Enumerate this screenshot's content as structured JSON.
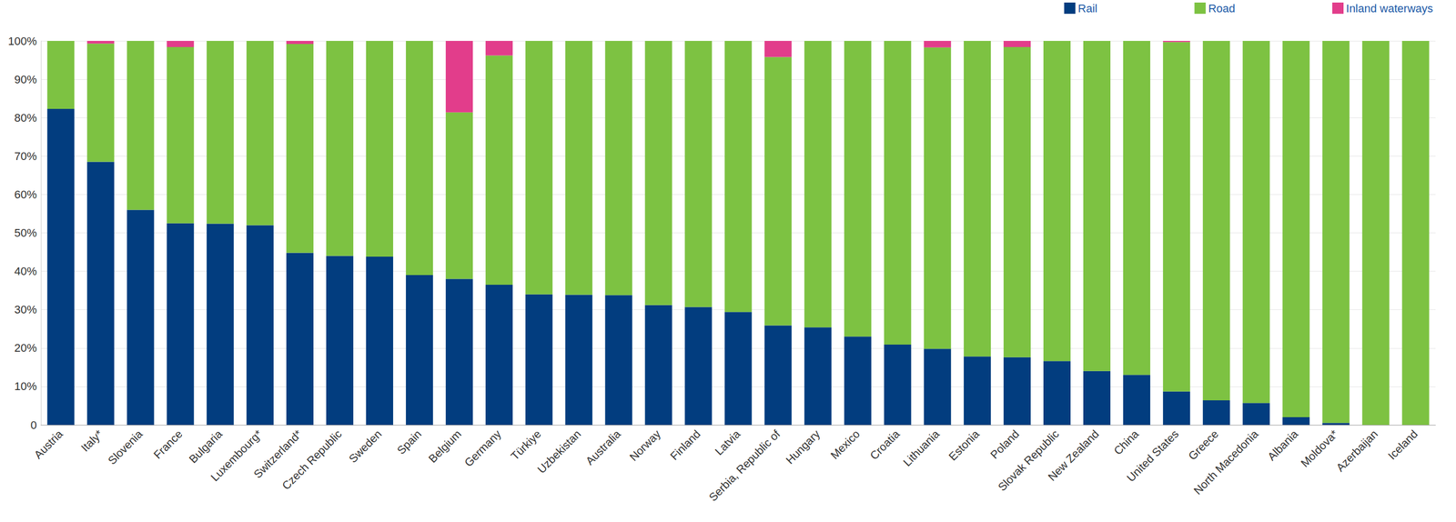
{
  "chart_data": {
    "type": "bar",
    "stacked": true,
    "legend": "top-right",
    "grid": true,
    "categories": [
      "Austria",
      "Italy*",
      "Slovenia",
      "France",
      "Bulgaria",
      "Luxembourg*",
      "Switzerland*",
      "Czech Republic",
      "Sweden",
      "Spain",
      "Belgium",
      "Germany",
      "Türkiye",
      "Uzbekistan",
      "Australia",
      "Norway",
      "Finland",
      "Latvia",
      "Serbia, Republic of",
      "Hungary",
      "Mexico",
      "Croatia",
      "Lithuania",
      "Estonia",
      "Poland",
      "Slovak Republic",
      "New Zealand",
      "China",
      "United States",
      "Greece",
      "North Macedonia",
      "Albania",
      "Moldova*",
      "Azerbaijan",
      "Iceland"
    ],
    "series": [
      {
        "name": "Rail",
        "color": "#023d7f",
        "values": [
          82.3,
          68.5,
          56,
          52.5,
          52.4,
          52,
          44.8,
          44,
          43.8,
          39,
          38,
          36.5,
          34,
          33.9,
          33.8,
          31.2,
          30.7,
          29.4,
          25.9,
          25.4,
          23,
          20.9,
          19.8,
          17.8,
          17.6,
          16.6,
          14,
          13,
          8.7,
          6.4,
          5.7,
          2,
          0.5,
          0,
          0
        ]
      },
      {
        "name": "Road",
        "color": "#7dc242",
        "values": [
          17.7,
          30.8,
          44,
          45.9,
          47.6,
          48,
          54.4,
          56,
          56.2,
          61,
          43.4,
          59.7,
          66,
          66.1,
          66.2,
          68.8,
          69.3,
          70.6,
          69.9,
          74.6,
          77,
          79.1,
          78.5,
          82.2,
          80.8,
          83.4,
          86,
          87,
          91,
          93.6,
          94.3,
          98,
          99.5,
          100,
          100
        ]
      },
      {
        "name": "Inland waterways",
        "color": "#e23d8b",
        "values": [
          0,
          0.7,
          0,
          1.6,
          0,
          0,
          0.8,
          0,
          0,
          0,
          18.6,
          3.8,
          0,
          0,
          0,
          0,
          0,
          0,
          4.2,
          0,
          0,
          0,
          1.7,
          0,
          1.6,
          0,
          0,
          0,
          0.3,
          0,
          0,
          0,
          0,
          0,
          0
        ]
      }
    ],
    "ylim": [
      0,
      100
    ],
    "yticks": [
      0,
      {
        "value": 10,
        "label": "10%"
      },
      {
        "value": 20,
        "label": "20%"
      },
      {
        "value": 30,
        "label": "30%"
      },
      {
        "value": 40,
        "label": "40%"
      },
      {
        "value": 50,
        "label": "50%"
      },
      {
        "value": 60,
        "label": "60%"
      },
      {
        "value": 70,
        "label": "70%"
      },
      {
        "value": 80,
        "label": "80%"
      },
      {
        "value": 90,
        "label": "90%"
      },
      {
        "value": 100,
        "label": "100%"
      }
    ]
  }
}
